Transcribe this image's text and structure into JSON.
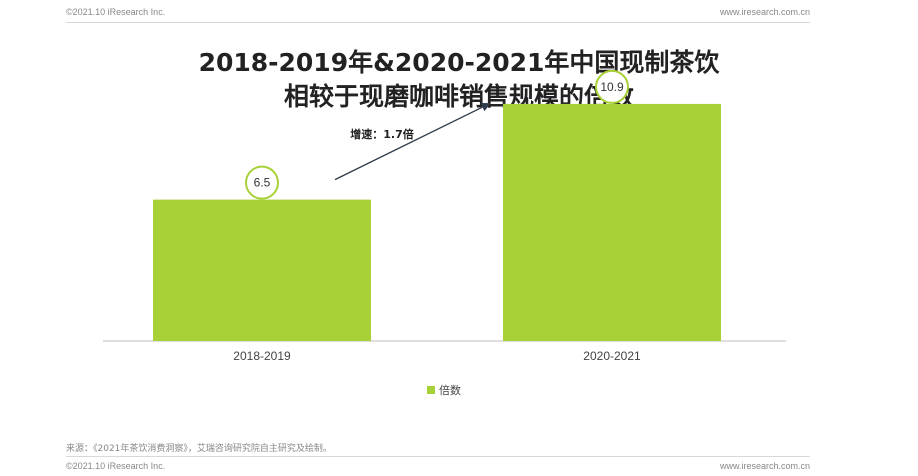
{
  "header": {
    "copyright": "©2021.10 iResearch Inc.",
    "website": "www.iresearch.com.cn"
  },
  "footer": {
    "source": "来源：《2021年茶饮消费洞察》，艾瑞咨询研究院自主研究及绘制。",
    "copyright": "©2021.10 iResearch Inc.",
    "website": "www.iresearch.com.cn"
  },
  "colors": {
    "bar": "#a8d037",
    "circle": "#a8d037",
    "arrow": "#2f3a4a"
  },
  "chart_data": {
    "type": "bar",
    "title_lines": [
      "2018-2019年&2020-2021年中国现制茶饮",
      "相较于现磨咖啡销售规模的倍数"
    ],
    "categories": [
      "2018-2019",
      "2020-2021"
    ],
    "series": [
      {
        "name": "倍数",
        "values": [
          6.5,
          10.9
        ]
      }
    ],
    "data_labels": [
      "6.5",
      "10.9"
    ],
    "annotation": "增速：1.7倍",
    "ylim": [
      0,
      12
    ],
    "grid": false,
    "legend": "bottom-center"
  }
}
